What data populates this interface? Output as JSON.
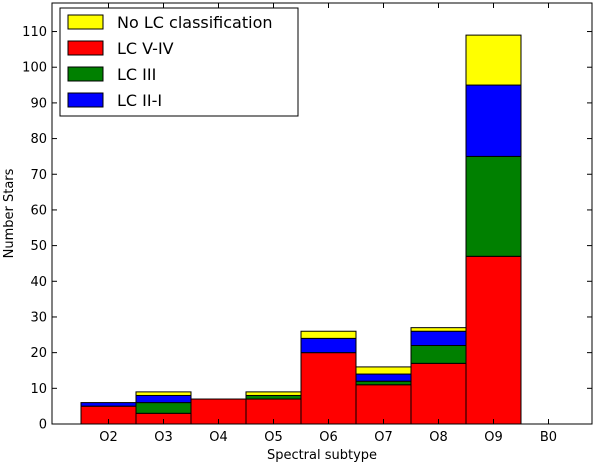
{
  "chart_data": {
    "type": "bar",
    "stacked": true,
    "categories": [
      "O2",
      "O3",
      "O4",
      "O5",
      "O6",
      "O7",
      "O8",
      "O9",
      "B0"
    ],
    "xlabel": "Spectral subtype",
    "ylabel": "Number Stars",
    "ylim": [
      0,
      118
    ],
    "yticks": [
      0,
      10,
      20,
      30,
      40,
      50,
      60,
      70,
      80,
      90,
      100,
      110
    ],
    "legend_position": "top-left",
    "series": [
      {
        "name": "LC V-IV",
        "color": "#ff0000",
        "values": [
          5,
          3,
          7,
          7,
          20,
          11,
          17,
          47,
          0
        ]
      },
      {
        "name": "LC III",
        "color": "#008000",
        "values": [
          0,
          3,
          0,
          1,
          0,
          1,
          5,
          28,
          0
        ]
      },
      {
        "name": "LC II-I",
        "color": "#0000ff",
        "values": [
          1,
          2,
          0,
          0,
          4,
          2,
          4,
          20,
          0
        ]
      },
      {
        "name": "No LC classification",
        "color": "#ffff00",
        "values": [
          0,
          1,
          0,
          1,
          2,
          2,
          1,
          14,
          0
        ]
      }
    ],
    "legend_order": [
      "No LC classification",
      "LC V-IV",
      "LC III",
      "LC II-I"
    ]
  }
}
